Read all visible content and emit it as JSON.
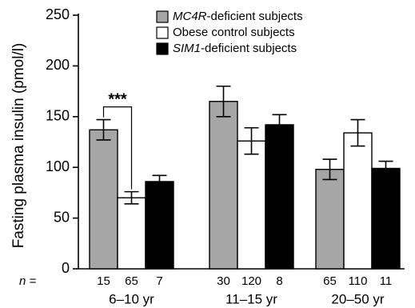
{
  "chart_data": {
    "type": "bar",
    "ylabel": "Fasting plasma insulin (pmol/l)",
    "ylim": [
      0,
      250
    ],
    "yticks": [
      0,
      50,
      100,
      150,
      200,
      250
    ],
    "categories": [
      "6–10 yr",
      "11–15 yr",
      "20–50 yr"
    ],
    "n_label": "n =",
    "legend_position": "top-center",
    "series": [
      {
        "name_italic": "MC4R",
        "name_rest": "-deficient subjects",
        "color": "#a6a6a6",
        "values": [
          137,
          165,
          98
        ],
        "errors": [
          10,
          15,
          10
        ],
        "n": [
          "15",
          "30",
          "65"
        ]
      },
      {
        "name_italic": "",
        "name_rest": "Obese control subjects",
        "color": "#ffffff",
        "values": [
          70,
          126,
          134
        ],
        "errors": [
          6,
          13,
          13
        ],
        "n": [
          "65",
          "120",
          "110"
        ]
      },
      {
        "name_italic": "SIM1",
        "name_rest": "-deficient subjects",
        "color": "#000000",
        "values": [
          86,
          142,
          99
        ],
        "errors": [
          6,
          10,
          7
        ],
        "n": [
          "7",
          "8",
          "11"
        ]
      }
    ],
    "annotations": [
      {
        "text": "***",
        "category": 0,
        "from_series": 0,
        "to_series": 1
      }
    ]
  }
}
